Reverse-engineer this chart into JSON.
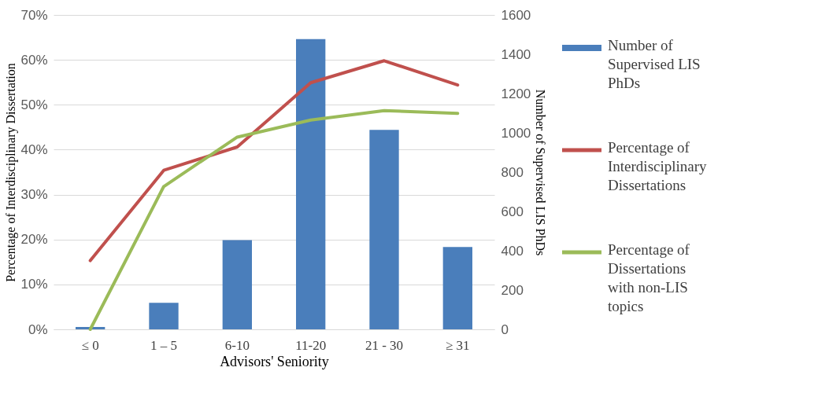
{
  "chart_data": {
    "type": "bar",
    "categories": [
      "≤ 0",
      "1 – 5",
      "6-10",
      "11-20",
      "21 - 30",
      "≥ 31"
    ],
    "xlabel": "Advisors' Seniority",
    "ylabel": "Percentage of Interdisciplinary Dissertation",
    "y2label": "Number of  Supervised LIS PhDs",
    "series": [
      {
        "name": "Number of Supervised LIS PhDs",
        "axis": "y2",
        "color": "#4a7ebb",
        "values": [
          12,
          135,
          454,
          1477,
          1015,
          419
        ]
      },
      {
        "name": "Percentage of Interdisciplinary Dissertations",
        "type": "line",
        "color": "#c0504d",
        "values": [
          15.3,
          35.4,
          40.6,
          54.9,
          59.8,
          54.4
        ]
      },
      {
        "name": "Percentage of Dissertations with non-LIS topics",
        "type": "line",
        "color": "#9bbb59",
        "values": [
          0,
          31.8,
          42.8,
          46.6,
          48.7,
          48.1
        ]
      }
    ],
    "ylim": [
      0,
      70
    ],
    "yticks": [
      {
        "value": 0,
        "label": "0%"
      },
      {
        "value": 10,
        "label": "10%"
      },
      {
        "value": 20,
        "label": "20%"
      },
      {
        "value": 30,
        "label": "30%"
      },
      {
        "value": 40,
        "label": "40%"
      },
      {
        "value": 50,
        "label": "50%"
      },
      {
        "value": 60,
        "label": "60%"
      },
      {
        "value": 70,
        "label": "70%"
      }
    ],
    "y2lim": [
      0,
      1600
    ],
    "y2ticks": [
      0,
      200,
      400,
      600,
      800,
      1000,
      1200,
      1400,
      1600
    ],
    "grid": "y",
    "legend": "right",
    "marker": "none",
    "line_style": "solid"
  }
}
